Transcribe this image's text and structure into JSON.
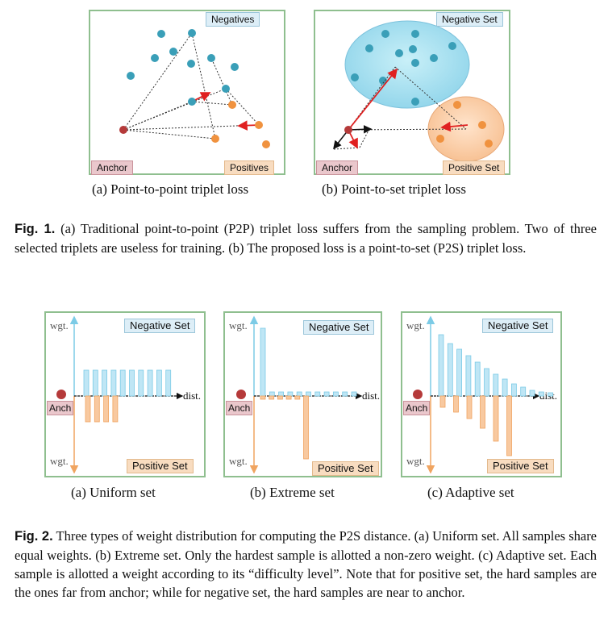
{
  "figure1": {
    "panel_a": {
      "tag_negatives": "Negatives",
      "tag_anchor": "Anchor",
      "tag_positives": "Positives",
      "caption": "(a) Point-to-point triplet loss"
    },
    "panel_b": {
      "tag_negative_set": "Negative Set",
      "tag_anchor": "Anchor",
      "tag_positive_set": "Positive Set",
      "caption": "(b) Point-to-set triplet loss"
    },
    "label": "Fig. 1.",
    "text": "(a) Traditional point-to-point (P2P) triplet loss suffers from the sampling problem. Two of three selected triplets are useless for training. (b) The proposed loss is a point-to-set (P2S) triplet loss."
  },
  "figure2": {
    "axis_wgt": "wgt.",
    "axis_dist": "dist.",
    "anchor": "Anch",
    "tag_negative_set": "Negative Set",
    "tag_positive_set": "Positive Set",
    "caption_a": "(a) Uniform set",
    "caption_b": "(b) Extreme set",
    "caption_c": "(c) Adaptive set",
    "label": "Fig. 2.",
    "text": "Three types of weight distribution for computing the P2S distance. (a) Uniform set. All samples share equal weights. (b) Extreme set. Only the hardest sample is allotted a non-zero weight. (c) Adaptive set. Each sample is allotted a weight according to its “difficulty level”. Note that for positive set, the hard samples are the ones far from anchor; while for negative set, the hard samples are near to anchor."
  },
  "colors": {
    "panel_border": "#8fbf8f",
    "negative_point": "#3a9fb8",
    "positive_point": "#f0923f",
    "anchor_point": "#b53a3a",
    "arrow_red": "#e02020",
    "neg_bar": "#bfe6f5",
    "pos_bar": "#f8c9a0"
  }
}
